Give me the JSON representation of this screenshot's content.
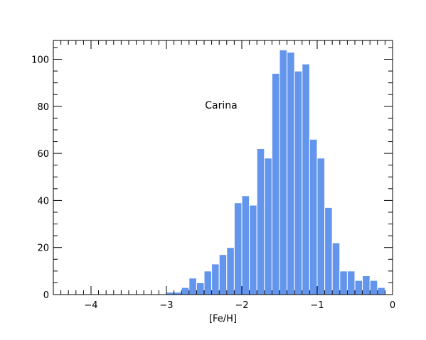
{
  "chart_data": {
    "type": "bar",
    "subtype": "histogram",
    "title": "",
    "xlabel": "[Fe/H]",
    "ylabel": "",
    "annotation": "Carina",
    "xlim": [
      -4.5,
      0
    ],
    "ylim": [
      0,
      108
    ],
    "bin_width": 0.1,
    "x_ticks": [
      -4,
      -3,
      -2,
      -1,
      0
    ],
    "x_tick_labels": [
      "−4",
      "−3",
      "−2",
      "−1",
      "0"
    ],
    "y_ticks": [
      0,
      20,
      40,
      60,
      80,
      100
    ],
    "y_tick_labels": [
      "0",
      "20",
      "40",
      "60",
      "80",
      "100"
    ],
    "bar_color": "#6495ED",
    "bar_edge_color": "#ffffff",
    "bins": [
      {
        "x0": -3.0,
        "value": 1
      },
      {
        "x0": -2.9,
        "value": 1
      },
      {
        "x0": -2.8,
        "value": 3
      },
      {
        "x0": -2.7,
        "value": 7
      },
      {
        "x0": -2.6,
        "value": 5
      },
      {
        "x0": -2.5,
        "value": 10
      },
      {
        "x0": -2.4,
        "value": 13
      },
      {
        "x0": -2.3,
        "value": 17
      },
      {
        "x0": -2.2,
        "value": 20
      },
      {
        "x0": -2.1,
        "value": 39
      },
      {
        "x0": -2.0,
        "value": 42
      },
      {
        "x0": -1.9,
        "value": 38
      },
      {
        "x0": -1.8,
        "value": 62
      },
      {
        "x0": -1.7,
        "value": 58
      },
      {
        "x0": -1.6,
        "value": 94
      },
      {
        "x0": -1.5,
        "value": 104
      },
      {
        "x0": -1.4,
        "value": 103
      },
      {
        "x0": -1.3,
        "value": 95
      },
      {
        "x0": -1.2,
        "value": 98
      },
      {
        "x0": -1.1,
        "value": 66
      },
      {
        "x0": -1.0,
        "value": 58
      },
      {
        "x0": -0.9,
        "value": 37
      },
      {
        "x0": -0.8,
        "value": 22
      },
      {
        "x0": -0.7,
        "value": 10
      },
      {
        "x0": -0.6,
        "value": 10
      },
      {
        "x0": -0.5,
        "value": 6
      },
      {
        "x0": -0.4,
        "value": 8
      },
      {
        "x0": -0.3,
        "value": 6
      },
      {
        "x0": -0.2,
        "value": 3
      }
    ]
  }
}
